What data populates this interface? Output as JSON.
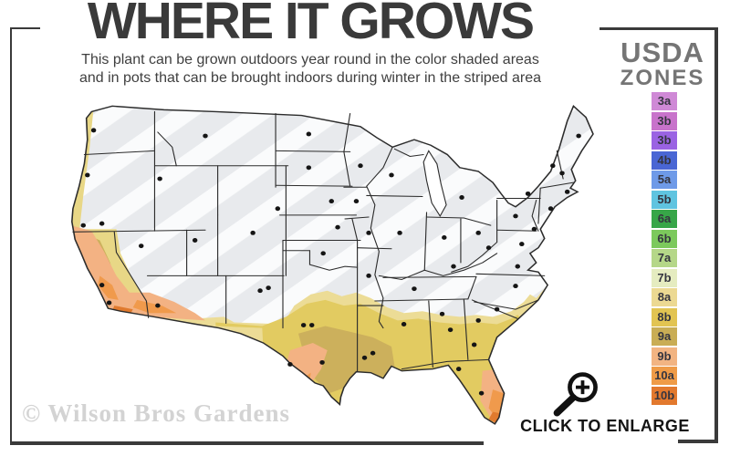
{
  "header": {
    "title": "WHERE IT GROWS",
    "subtitle_line1": "This plant can be grown outdoors year round in the color shaded areas",
    "subtitle_line2": "and in pots that can be brought indoors during winter in the striped area"
  },
  "legend": {
    "title_line1": "USDA",
    "title_line2": "ZONES",
    "zones": [
      {
        "label": "3a",
        "color": "#cf89d6"
      },
      {
        "label": "3b",
        "color": "#c873cb"
      },
      {
        "label": "3b",
        "color": "#9a63e3"
      },
      {
        "label": "4b",
        "color": "#4a66d4"
      },
      {
        "label": "5a",
        "color": "#6e9ae8"
      },
      {
        "label": "5b",
        "color": "#5fc4e0"
      },
      {
        "label": "6a",
        "color": "#37a648"
      },
      {
        "label": "6b",
        "color": "#7cc95c"
      },
      {
        "label": "7a",
        "color": "#b5d788"
      },
      {
        "label": "7b",
        "color": "#e5ecc0"
      },
      {
        "label": "8a",
        "color": "#ecd992"
      },
      {
        "label": "8b",
        "color": "#e2c452"
      },
      {
        "label": "9a",
        "color": "#c9ad55"
      },
      {
        "label": "9b",
        "color": "#f2b482"
      },
      {
        "label": "10a",
        "color": "#ef9b47"
      },
      {
        "label": "10b",
        "color": "#e2792e"
      }
    ]
  },
  "map": {
    "region": "Continental United States",
    "striped_base_color": "#e8eaed",
    "stripe_color": "#fafbfc",
    "zone_fill_colors": {
      "8a": "#ecdc96",
      "8b": "#e2cb61",
      "9a": "#ccb05c",
      "9b": "#f3b283",
      "10a": "#f09a4c",
      "10b": "#e07a2e"
    }
  },
  "footer": {
    "watermark": "© Wilson Bros Gardens",
    "enlarge_label": "CLICK TO ENLARGE"
  }
}
